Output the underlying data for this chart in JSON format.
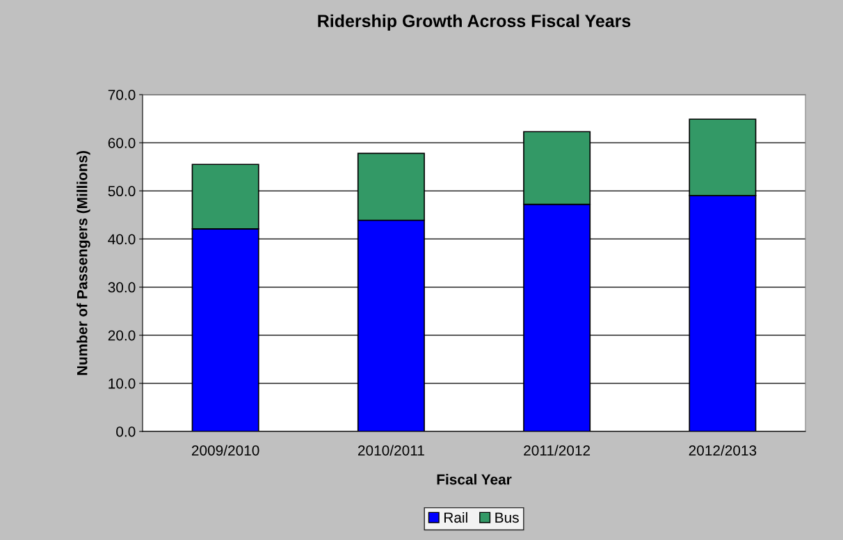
{
  "chart_data": {
    "type": "bar",
    "title": "Ridership Growth Across Fiscal Years",
    "xlabel": "Fiscal Year",
    "ylabel": "Number of Passengers (Millions)",
    "categories": [
      "2009/2010",
      "2010/2011",
      "2011/2012",
      "2012/2013"
    ],
    "stacked": true,
    "series": [
      {
        "name": "Rail",
        "color": "#0000ff",
        "values": [
          42.1,
          43.9,
          47.2,
          49.0
        ]
      },
      {
        "name": "Bus",
        "color": "#339966",
        "values": [
          13.4,
          13.9,
          15.1,
          15.9
        ]
      }
    ],
    "ylim": [
      0,
      70
    ],
    "yticks": [
      {
        "value": 0,
        "label": "0.0"
      },
      {
        "value": 10,
        "label": "10.0"
      },
      {
        "value": 20,
        "label": "20.0"
      },
      {
        "value": 30,
        "label": "30.0"
      },
      {
        "value": 40,
        "label": "40.0"
      },
      {
        "value": 50,
        "label": "50.0"
      },
      {
        "value": 60,
        "label": "60.0"
      },
      {
        "value": 70,
        "label": "70.0"
      }
    ],
    "grid": "y",
    "legend": "bottom"
  }
}
